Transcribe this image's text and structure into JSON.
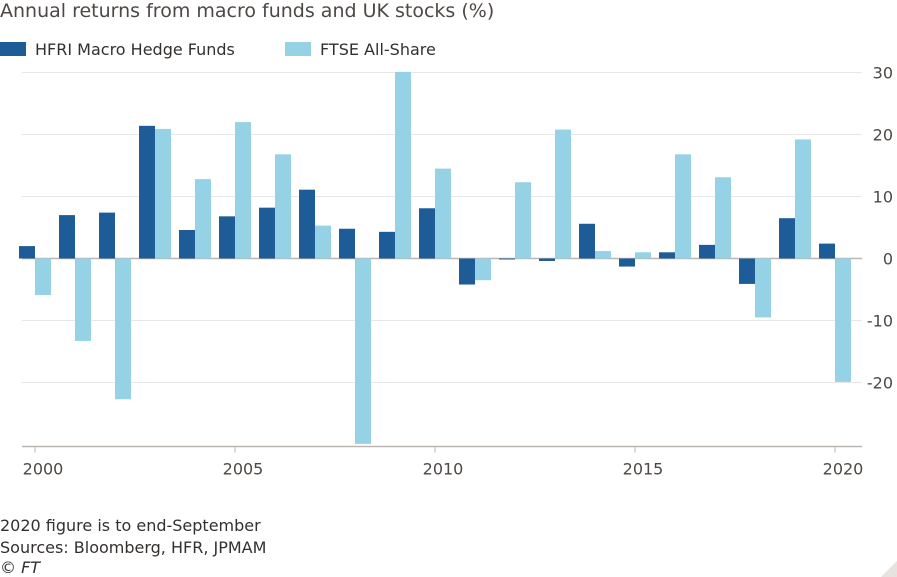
{
  "title": "Annual returns from macro funds and UK stocks (%)",
  "legend": [
    {
      "label": "HFRI Macro Hedge Funds",
      "color": "#1e5c97"
    },
    {
      "label": "FTSE All-Share",
      "color": "#95d2e5"
    }
  ],
  "footnotes": {
    "note": "2020 figure is to end-September",
    "sources": "Sources: Bloomberg, HFR, JPMAM",
    "credit": "© FT"
  },
  "colors": {
    "grid": "#e8e5e2",
    "zero_line": "#bcb6b2",
    "tick_text": "#4d4845"
  },
  "chart_data": {
    "type": "bar",
    "categories": [
      "2000",
      "2001",
      "2002",
      "2003",
      "2004",
      "2005",
      "2006",
      "2007",
      "2008",
      "2009",
      "2010",
      "2011",
      "2012",
      "2013",
      "2014",
      "2015",
      "2016",
      "2017",
      "2018",
      "2019",
      "2020"
    ],
    "x_tick_labels": [
      "2000",
      "2005",
      "2010",
      "2015",
      "2020"
    ],
    "y_ticks": [
      30,
      20,
      10,
      0,
      -10,
      -20
    ],
    "y_tick_labels": [
      "30",
      "20",
      "10",
      "0",
      "-10",
      "-20"
    ],
    "ylim": [
      -30,
      30
    ],
    "grid": true,
    "legend_position": "top-left",
    "y_axis_position": "right",
    "series": [
      {
        "name": "HFRI Macro Hedge Funds",
        "color": "#1e5c97",
        "values": [
          2.0,
          7.0,
          7.4,
          21.4,
          4.6,
          6.8,
          8.2,
          11.1,
          4.8,
          4.3,
          8.1,
          -4.2,
          -0.1,
          -0.4,
          5.6,
          -1.3,
          1.0,
          2.2,
          -4.1,
          6.5,
          2.4
        ]
      },
      {
        "name": "FTSE All-Share",
        "color": "#95d2e5",
        "values": [
          -5.9,
          -13.3,
          -22.7,
          20.9,
          12.8,
          22.0,
          16.8,
          5.3,
          -29.9,
          30.1,
          14.5,
          -3.5,
          12.3,
          20.8,
          1.2,
          1.0,
          16.8,
          13.1,
          -9.5,
          19.2,
          -19.9
        ]
      }
    ]
  }
}
